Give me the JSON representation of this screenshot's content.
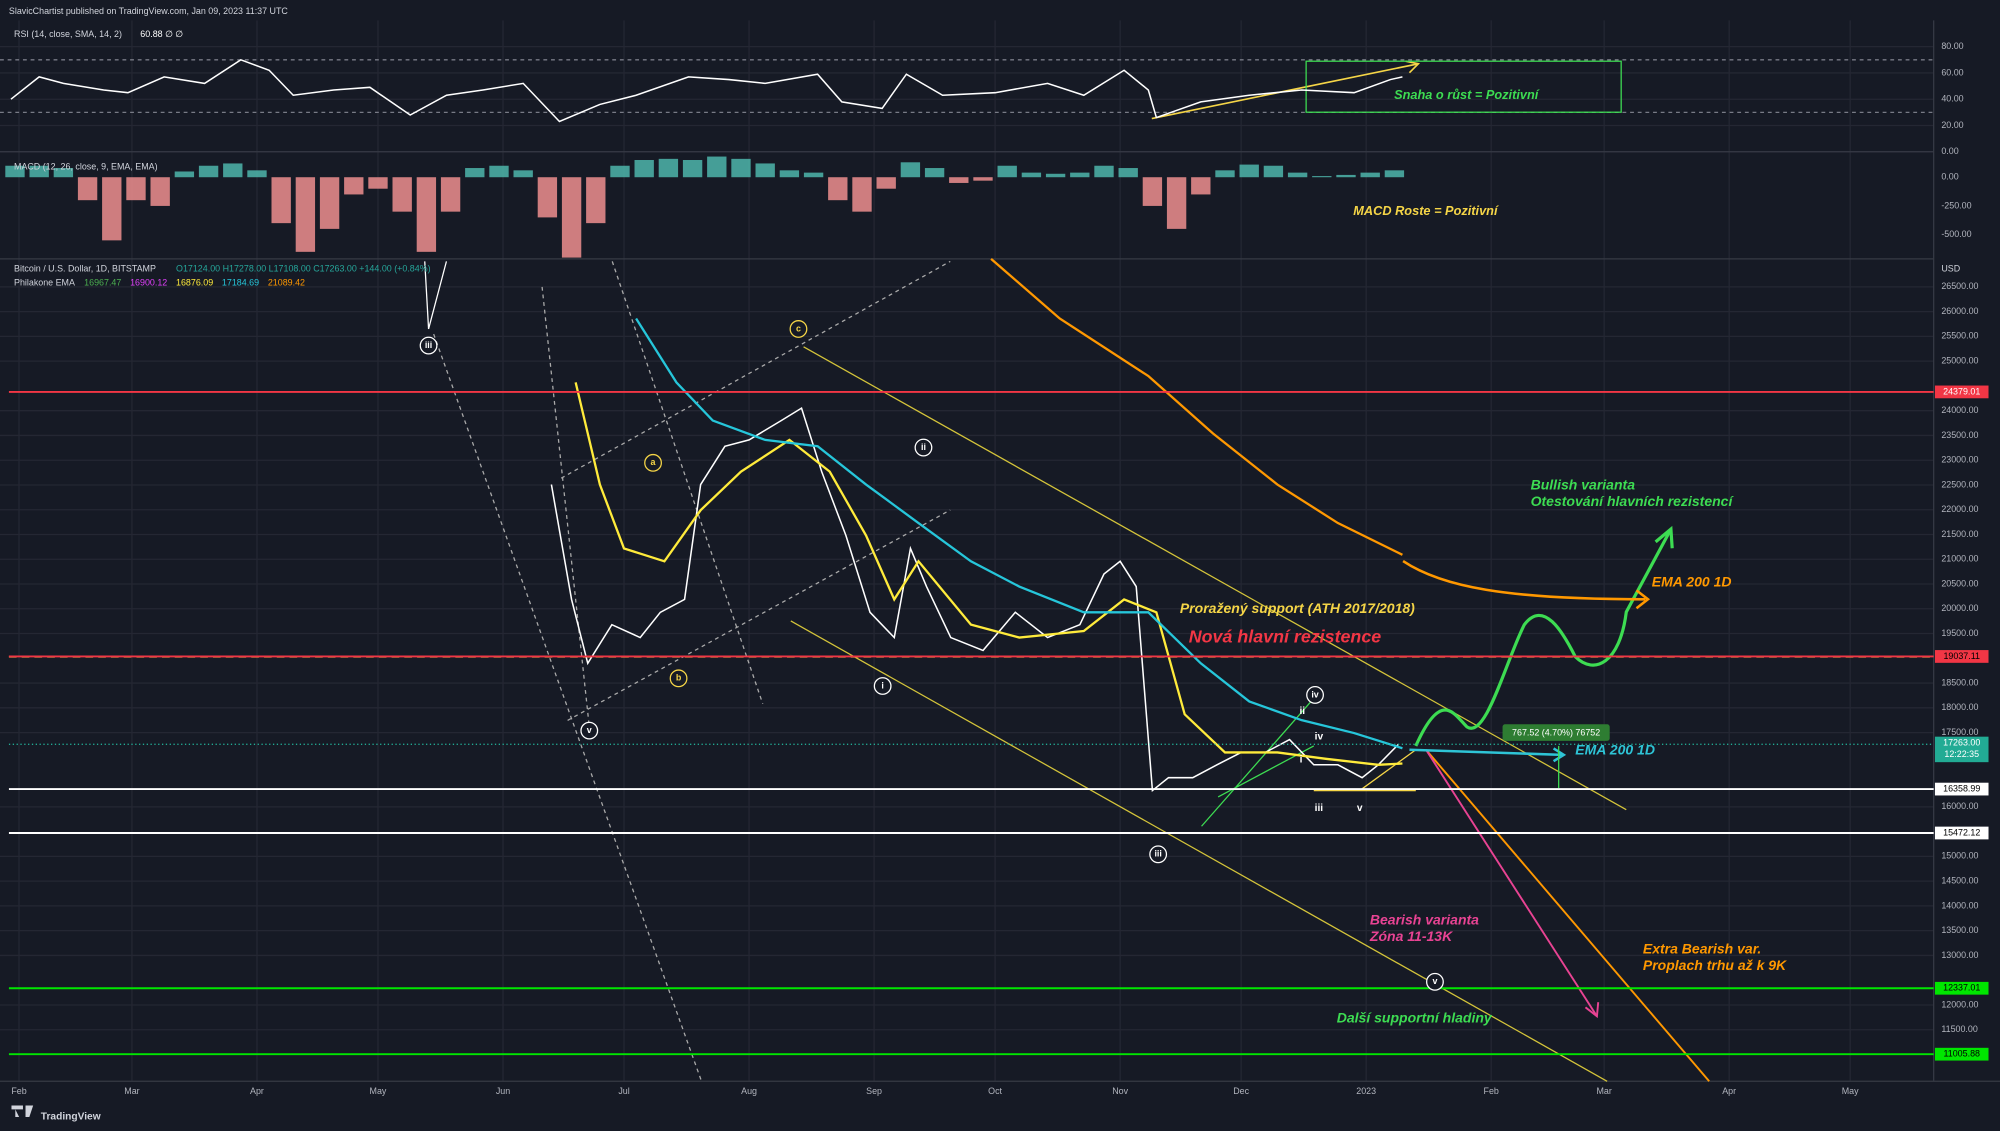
{
  "header": "SlavicChartist published on TradingView.com, Jan 09, 2023 11:37 UTC",
  "footer": "TradingView",
  "chart_data": [
    {
      "type": "line",
      "title": "RSI (14, close, SMA, 14, 2)",
      "legend_value": "60.88 ∅ ∅",
      "color": "#ffffff",
      "x": [
        29,
        36,
        42,
        52,
        58,
        67,
        77,
        86,
        93,
        99,
        109,
        118,
        128,
        137,
        146,
        156,
        165,
        175,
        184,
        197,
        207,
        216,
        229,
        235,
        245,
        251,
        260,
        273,
        286,
        295,
        305,
        311,
        313,
        324,
        336,
        349,
        362,
        371,
        374
      ],
      "values": [
        40,
        57,
        52,
        47,
        45,
        57,
        52,
        70,
        62,
        43,
        47,
        49,
        28,
        43,
        47,
        52,
        23,
        36,
        43,
        57,
        55,
        52,
        59,
        38,
        33,
        59,
        43,
        45,
        52,
        43,
        62,
        47,
        26,
        38,
        43,
        47,
        45,
        55,
        57
      ],
      "xlim": [
        28.5,
        505.7
      ],
      "ylim": [
        0,
        100
      ],
      "yticks": [
        {
          "value": 80,
          "label": "80.00"
        },
        {
          "value": 60,
          "label": "60.00"
        },
        {
          "value": 40,
          "label": "40.00"
        },
        {
          "value": 20,
          "label": "20.00"
        },
        {
          "value": 0,
          "label": "0.00"
        }
      ],
      "levels": [
        70,
        30
      ],
      "grid": true
    },
    {
      "type": "bar",
      "title": "MACD (12, 26, close, 9, EMA, EMA)",
      "color": "#4db6ac",
      "negative_color": "#ef8f8f",
      "x": [
        30,
        36,
        42,
        48,
        54,
        60,
        66,
        72,
        78,
        84,
        90,
        96,
        102,
        108,
        114,
        120,
        126,
        132,
        138,
        144,
        150,
        156,
        162,
        168,
        174,
        180,
        186,
        192,
        198,
        204,
        210,
        216,
        222,
        228,
        234,
        240,
        246,
        252,
        258,
        264,
        270,
        276,
        282,
        288,
        294,
        300,
        306,
        312,
        318,
        324,
        330,
        336,
        342,
        348,
        354,
        360,
        366,
        372
      ],
      "values": [
        100,
        100,
        80,
        -200,
        -550,
        -200,
        -250,
        50,
        100,
        120,
        60,
        -400,
        -650,
        -450,
        -150,
        -100,
        -300,
        -650,
        -300,
        80,
        100,
        60,
        -350,
        -700,
        -400,
        100,
        150,
        160,
        150,
        180,
        160,
        120,
        60,
        40,
        -200,
        -300,
        -100,
        130,
        80,
        -50,
        -30,
        100,
        40,
        30,
        40,
        100,
        80,
        -250,
        -450,
        -150,
        60,
        110,
        100,
        40,
        10,
        20,
        40,
        60
      ],
      "xlim": [
        28.5,
        505.7
      ],
      "ylim": [
        -711,
        222
      ],
      "yticks": [
        {
          "value": 0,
          "label": "0.00"
        },
        {
          "value": -250,
          "label": "-250.00"
        },
        {
          "value": -500,
          "label": "-500.00"
        }
      ]
    },
    {
      "type": "line",
      "title": "Bitcoin / U.S. Dollar, 1D, BITSTAMP",
      "ohlc": "O17124.00  H17278.00  L17108.00  C17263.00  +144.00 (+0.84%)",
      "ema_title": "Philakone EMA",
      "ema_legend": [
        {
          "label": "16967.47",
          "color": "#4caf50"
        },
        {
          "label": "16900.12",
          "color": "#e040fb"
        },
        {
          "label": "16876.09",
          "color": "#ffeb3b"
        },
        {
          "label": "17184.69",
          "color": "#26c6da"
        },
        {
          "label": "21089.42",
          "color": "#ff9800"
        }
      ],
      "axis_label": "USD",
      "series": [
        {
          "color": "#ffffff",
          "x": [
            163,
            168,
            172,
            178,
            185,
            190,
            196,
            200,
            206,
            212,
            220,
            225,
            230,
            236,
            242,
            248,
            252,
            256,
            262,
            270,
            278,
            286,
            294,
            300,
            304,
            308,
            312,
            316,
            322,
            328,
            334,
            340,
            346,
            352,
            358,
            364,
            368,
            373
          ],
          "values": [
            22510,
            20190,
            18900,
            19680,
            19420,
            19930,
            20190,
            22510,
            23280,
            23410,
            23800,
            24050,
            22770,
            21480,
            19930,
            19420,
            21220,
            20450,
            19420,
            19160,
            19930,
            19420,
            19680,
            20700,
            20960,
            20450,
            16330,
            16590,
            16590,
            16850,
            17100,
            17100,
            17360,
            16850,
            16850,
            16590,
            16850,
            17263
          ]
        },
        {
          "color": "#ffeb3b",
          "x": [
            169,
            175,
            181,
            191,
            200,
            210,
            222,
            232,
            241,
            248,
            254,
            267,
            279,
            295,
            305,
            313,
            320,
            330,
            343,
            355,
            368,
            374
          ],
          "values": [
            24570,
            22510,
            21220,
            20960,
            21990,
            22770,
            23410,
            22770,
            21480,
            20190,
            20960,
            19680,
            19420,
            19550,
            20190,
            19930,
            17870,
            17100,
            17100,
            16970,
            16850,
            16876
          ]
        },
        {
          "color": "#26c6da",
          "x": [
            184,
            194,
            203,
            216,
            229,
            241,
            254,
            267,
            279,
            295,
            311,
            324,
            336,
            349,
            362,
            374
          ],
          "values": [
            25860,
            24570,
            23800,
            23410,
            23280,
            22510,
            21730,
            20960,
            20450,
            19930,
            19930,
            18900,
            18130,
            17750,
            17490,
            17185
          ]
        },
        {
          "color": "#ff9800",
          "x": [
            272,
            289,
            311,
            327,
            343,
            358,
            374
          ],
          "values": [
            27066,
            25860,
            24700,
            23540,
            22510,
            21730,
            21089
          ]
        }
      ],
      "xlim": [
        28.5,
        505.7
      ],
      "ylim": [
        10459,
        27066
      ],
      "xticks": [
        {
          "value": 31,
          "label": "Feb"
        },
        {
          "value": 59,
          "label": "Mar"
        },
        {
          "value": 90,
          "label": "Apr"
        },
        {
          "value": 120,
          "label": "May"
        },
        {
          "value": 151,
          "label": "Jun"
        },
        {
          "value": 181,
          "label": "Jul"
        },
        {
          "value": 212,
          "label": "Aug"
        },
        {
          "value": 243,
          "label": "Sep"
        },
        {
          "value": 273,
          "label": "Oct"
        },
        {
          "value": 304,
          "label": "Nov"
        },
        {
          "value": 334,
          "label": "Dec"
        },
        {
          "value": 365,
          "label": "2023"
        },
        {
          "value": 396,
          "label": "Feb"
        },
        {
          "value": 424,
          "label": "Mar"
        },
        {
          "value": 455,
          "label": "Apr"
        },
        {
          "value": 485,
          "label": "May"
        }
      ],
      "yticks": [
        {
          "value": 26500,
          "label": "26500.00"
        },
        {
          "value": 26000,
          "label": "26000.00"
        },
        {
          "value": 25500,
          "label": "25500.00"
        },
        {
          "value": 25000,
          "label": "25000.00"
        },
        {
          "value": 24000,
          "label": "24000.00"
        },
        {
          "value": 23500,
          "label": "23500.00"
        },
        {
          "value": 23000,
          "label": "23000.00"
        },
        {
          "value": 22500,
          "label": "22500.00"
        },
        {
          "value": 22000,
          "label": "22000.00"
        },
        {
          "value": 21500,
          "label": "21500.00"
        },
        {
          "value": 21000,
          "label": "21000.00"
        },
        {
          "value": 20500,
          "label": "20500.00"
        },
        {
          "value": 20000,
          "label": "20000.00"
        },
        {
          "value": 19500,
          "label": "19500.00"
        },
        {
          "value": 18500,
          "label": "18500.00"
        },
        {
          "value": 18000,
          "label": "18000.00"
        },
        {
          "value": 17500,
          "label": "17500.00"
        },
        {
          "value": 16000,
          "label": "16000.00"
        },
        {
          "value": 15000,
          "label": "15000.00"
        },
        {
          "value": 14500,
          "label": "14500.00"
        },
        {
          "value": 14000,
          "label": "14000.00"
        },
        {
          "value": 13500,
          "label": "13500.00"
        },
        {
          "value": 13000,
          "label": "13000.00"
        },
        {
          "value": 12000,
          "label": "12000.00"
        },
        {
          "value": 11500,
          "label": "11500.00"
        }
      ],
      "grid": true,
      "levels": [
        {
          "value": 24379.01,
          "label": "24379.01",
          "color": "#f23645",
          "label_color": "#ffffff"
        },
        {
          "value": 19037.11,
          "label": "19037.11",
          "color": "#f23645",
          "label_color": "#000000"
        },
        {
          "value": 16358.99,
          "label": "16358.99",
          "color": "#ffffff",
          "label_color": "#000000"
        },
        {
          "value": 15472.12,
          "label": "15472.12",
          "color": "#ffffff",
          "label_color": "#000000"
        },
        {
          "value": 12337.01,
          "label": "12337.01",
          "color": "#00e600",
          "label_color": "#000000"
        },
        {
          "value": 11005.88,
          "label": "11005.88",
          "color": "#00e600",
          "label_color": "#000000"
        }
      ],
      "last_price": {
        "value": 17263,
        "label": "17263.00",
        "countdown": "12:22:35",
        "color": "#22ab94"
      },
      "measure": "767.52 (4.70%) 76752",
      "annotations": [
        {
          "text": "Snaha o růst = Pozitivní",
          "color": "#3ddc52"
        },
        {
          "text": "MACD Roste = Pozitivní",
          "color": "#f5d547"
        },
        {
          "text": "Proražený support (ATH 2017/2018)",
          "color": "#f5d547"
        },
        {
          "text": "Nová hlavní rezistence",
          "color": "#f23645"
        },
        {
          "text": "Bullish varianta",
          "color": "#3ddc52"
        },
        {
          "text": "Otestování hlavních rezistencí",
          "color": "#3ddc52"
        },
        {
          "text": "EMA 200 1D",
          "color": "#ff9800"
        },
        {
          "text": "EMA 200 1D",
          "color": "#2ec4d6"
        },
        {
          "text": "Bearish varianta",
          "color": "#e84393"
        },
        {
          "text": "Zóna 11-13K",
          "color": "#e84393"
        },
        {
          "text": "Extra Bearish var.",
          "color": "#ff9800"
        },
        {
          "text": "Proplach trhu až k 9K",
          "color": "#ff9800"
        },
        {
          "text": "Další supportní hladiny",
          "color": "#3ddc52"
        }
      ],
      "waves": [
        {
          "label": "iii",
          "color": "#ffffff"
        },
        {
          "label": "v",
          "color": "#ffffff"
        },
        {
          "label": "a",
          "color": "#f5d547"
        },
        {
          "label": "b",
          "color": "#f5d547"
        },
        {
          "label": "c",
          "color": "#f5d547"
        },
        {
          "label": "i",
          "color": "#ffffff"
        },
        {
          "label": "ii",
          "color": "#ffffff"
        },
        {
          "label": "iii",
          "color": "#ffffff"
        },
        {
          "label": "iv",
          "color": "#ffffff"
        },
        {
          "label": "v",
          "color": "#ffffff"
        }
      ],
      "sub_waves": [
        "ii",
        "iv",
        "i",
        "iii",
        "v"
      ]
    }
  ]
}
